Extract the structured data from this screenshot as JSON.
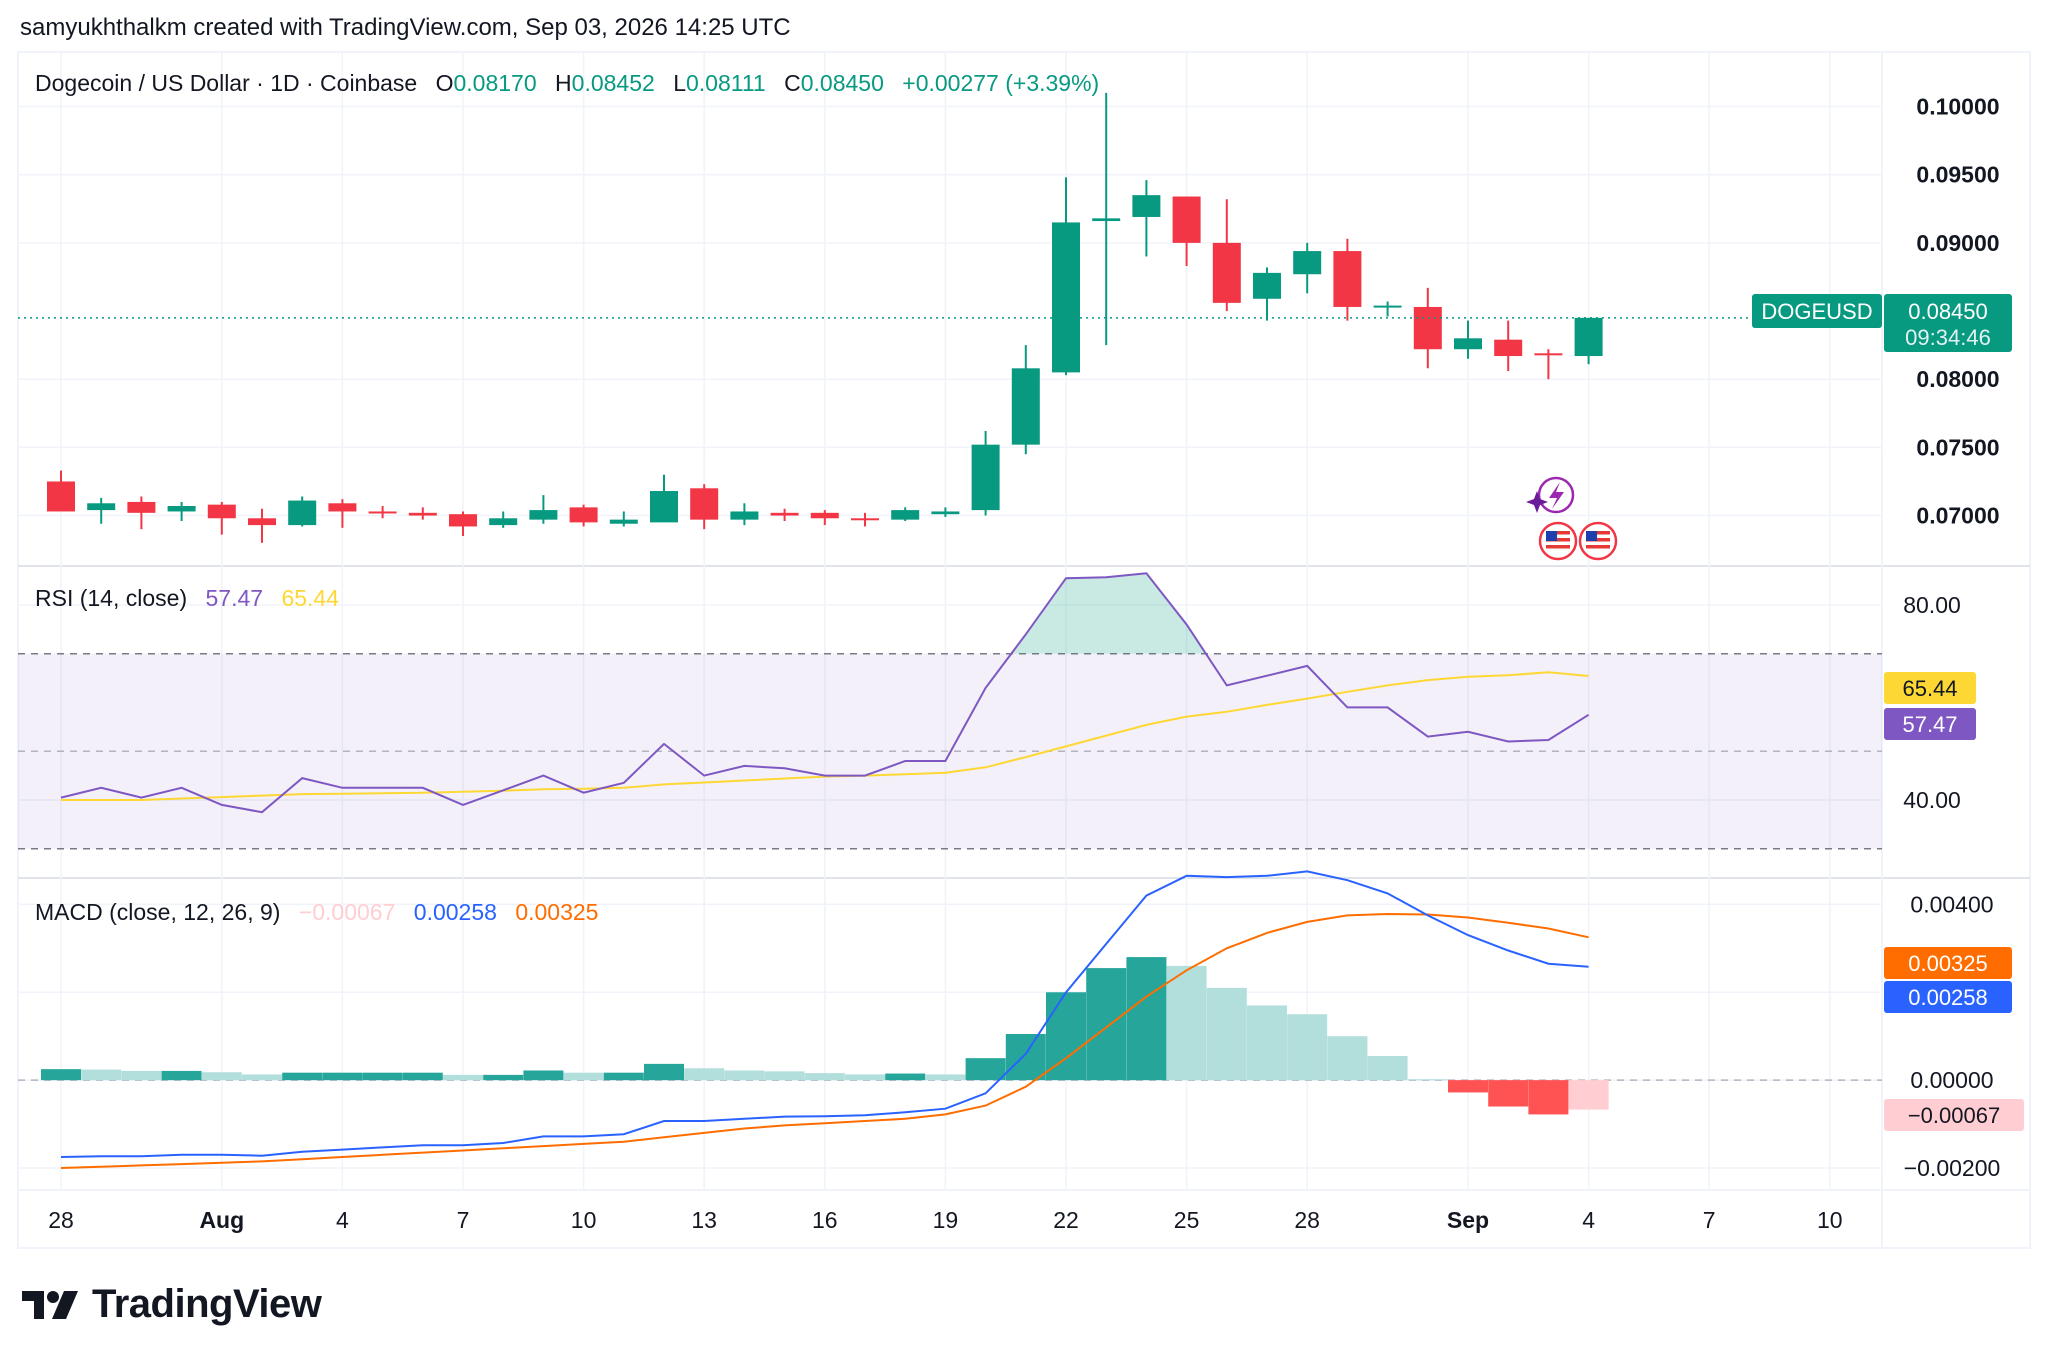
{
  "header": {
    "text": "samyukhthalkm created with TradingView.com, Sep 03, 2026 14:25 UTC"
  },
  "brand": {
    "name": "TradingView"
  },
  "legend": {
    "symbol": "Dogecoin / US Dollar · 1D · Coinbase",
    "o_label": "O",
    "o": "0.08170",
    "h_label": "H",
    "h": "0.08452",
    "l_label": "L",
    "l": "0.08111",
    "c_label": "C",
    "c": "0.08450",
    "change": "+0.00277 (+3.39%)"
  },
  "price_badge": {
    "symbol": "DOGEUSD",
    "price": "0.08450",
    "countdown": "09:34:46"
  },
  "rsi_legend": {
    "title": "RSI (14, close)",
    "rsi": "57.47",
    "ma": "65.44"
  },
  "macd_legend": {
    "title": "MACD (close, 12, 26, 9)",
    "hist": "−0.00067",
    "macd": "0.00258",
    "signal": "0.00325"
  },
  "colors": {
    "up": "#089981",
    "down": "#f23645",
    "rsi": "#7e57c2",
    "rsi_ma": "#fdd835",
    "macd": "#2962ff",
    "signal": "#ff6d00",
    "hist_up_strong": "#26a69a",
    "hist_up_weak": "#b2dfdb",
    "hist_down_strong": "#ff5252",
    "hist_down_weak": "#ffcdd2"
  },
  "chart_data": {
    "type": "candlestick",
    "price_axis": {
      "ticks": [
        "0.07000",
        "0.07500",
        "0.08000",
        "0.09000",
        "0.09500",
        "0.10000"
      ],
      "range": [
        0.0663,
        0.104
      ]
    },
    "x_axis": {
      "labels": [
        {
          "i": 0,
          "text": "28"
        },
        {
          "i": 4,
          "text": "Aug"
        },
        {
          "i": 7,
          "text": "4"
        },
        {
          "i": 10,
          "text": "7"
        },
        {
          "i": 13,
          "text": "10"
        },
        {
          "i": 16,
          "text": "13"
        },
        {
          "i": 19,
          "text": "16"
        },
        {
          "i": 22,
          "text": "19"
        },
        {
          "i": 25,
          "text": "22"
        },
        {
          "i": 28,
          "text": "25"
        },
        {
          "i": 31,
          "text": "28"
        },
        {
          "i": 35,
          "text": "Sep"
        },
        {
          "i": 38,
          "text": "4"
        },
        {
          "i": 41,
          "text": "7"
        },
        {
          "i": 44,
          "text": "10"
        }
      ]
    },
    "candles": [
      [
        0.0725,
        0.0733,
        0.0703,
        0.0703
      ],
      [
        0.0704,
        0.0713,
        0.0694,
        0.0709
      ],
      [
        0.071,
        0.0714,
        0.069,
        0.0702
      ],
      [
        0.0703,
        0.071,
        0.0696,
        0.0707
      ],
      [
        0.0708,
        0.071,
        0.0686,
        0.0698
      ],
      [
        0.0698,
        0.0705,
        0.068,
        0.0693
      ],
      [
        0.0693,
        0.0714,
        0.0692,
        0.0711
      ],
      [
        0.0709,
        0.0712,
        0.0691,
        0.0703
      ],
      [
        0.0703,
        0.0707,
        0.0698,
        0.0702
      ],
      [
        0.0702,
        0.0706,
        0.0697,
        0.07
      ],
      [
        0.0701,
        0.0703,
        0.0685,
        0.0692
      ],
      [
        0.0693,
        0.0703,
        0.0691,
        0.0698
      ],
      [
        0.0697,
        0.0715,
        0.0694,
        0.0704
      ],
      [
        0.0706,
        0.0708,
        0.0692,
        0.0695
      ],
      [
        0.0694,
        0.0703,
        0.0692,
        0.0697
      ],
      [
        0.0695,
        0.073,
        0.0695,
        0.0718
      ],
      [
        0.072,
        0.0723,
        0.069,
        0.0697
      ],
      [
        0.0697,
        0.0709,
        0.0693,
        0.0703
      ],
      [
        0.0702,
        0.0705,
        0.0696,
        0.07
      ],
      [
        0.0702,
        0.0704,
        0.0693,
        0.0698
      ],
      [
        0.0698,
        0.0702,
        0.0692,
        0.0697
      ],
      [
        0.0697,
        0.0706,
        0.0696,
        0.0704
      ],
      [
        0.0701,
        0.0706,
        0.0699,
        0.0703
      ],
      [
        0.0704,
        0.0762,
        0.07,
        0.0752
      ],
      [
        0.0752,
        0.0825,
        0.0745,
        0.0808
      ],
      [
        0.0805,
        0.0948,
        0.0803,
        0.0915
      ],
      [
        0.0916,
        0.101,
        0.0825,
        0.0918
      ],
      [
        0.0919,
        0.0946,
        0.089,
        0.0935
      ],
      [
        0.0934,
        0.0934,
        0.0883,
        0.09
      ],
      [
        0.09,
        0.0932,
        0.085,
        0.0856
      ],
      [
        0.0859,
        0.0882,
        0.0843,
        0.0878
      ],
      [
        0.0877,
        0.09,
        0.0863,
        0.0894
      ],
      [
        0.0894,
        0.0903,
        0.0843,
        0.0853
      ],
      [
        0.0854,
        0.0857,
        0.0846,
        0.0854
      ],
      [
        0.0853,
        0.0867,
        0.0808,
        0.0822
      ],
      [
        0.0822,
        0.0843,
        0.0815,
        0.083
      ],
      [
        0.0829,
        0.0843,
        0.0806,
        0.0817
      ],
      [
        0.0819,
        0.0822,
        0.08,
        0.0818
      ],
      [
        0.0817,
        0.0845,
        0.0811,
        0.0845
      ]
    ],
    "last_price": 0.0845,
    "rsi": {
      "axis": {
        "ticks": [
          "40.00",
          "80.00"
        ],
        "range": [
          24,
          88
        ],
        "bands": [
          30,
          50,
          70
        ]
      },
      "rsi_values": [
        40.5,
        42.5,
        40.5,
        42.5,
        39.0,
        37.5,
        44.5,
        42.5,
        42.5,
        42.5,
        39.0,
        42.0,
        45.0,
        41.5,
        43.5,
        51.5,
        45.0,
        47.0,
        46.5,
        45.0,
        45.0,
        48.0,
        48.0,
        63.0,
        74.0,
        85.5,
        85.7,
        86.5,
        76.0,
        63.5,
        65.5,
        67.5,
        59.0,
        59.0,
        53.0,
        54.0,
        52.0,
        52.3,
        57.47
      ],
      "ma_values": [
        40.0,
        40.0,
        40.0,
        40.3,
        40.6,
        40.9,
        41.2,
        41.3,
        41.4,
        41.5,
        41.7,
        41.9,
        42.2,
        42.3,
        42.5,
        43.2,
        43.6,
        44.0,
        44.4,
        44.8,
        45.0,
        45.3,
        45.6,
        46.7,
        48.8,
        51.0,
        53.2,
        55.4,
        57.1,
        58.1,
        59.5,
        60.8,
        62.2,
        63.5,
        64.6,
        65.3,
        65.6,
        66.2,
        65.44
      ]
    },
    "macd": {
      "axis": {
        "ticks": [
          "−0.00200",
          "0.00000",
          "0.00200",
          "0.00400"
        ],
        "range": [
          -0.0025,
          0.0046
        ]
      },
      "macd_values": [
        -0.00175,
        -0.00173,
        -0.00173,
        -0.0017,
        -0.0017,
        -0.00172,
        -0.00163,
        -0.00158,
        -0.00153,
        -0.00148,
        -0.00148,
        -0.00143,
        -0.00128,
        -0.00128,
        -0.00123,
        -0.00093,
        -0.00093,
        -0.00088,
        -0.00083,
        -0.00082,
        -0.0008,
        -0.00073,
        -0.00065,
        -0.0003,
        0.0006,
        0.002,
        0.0031,
        0.0042,
        0.00465,
        0.00462,
        0.00465,
        0.00475,
        0.00455,
        0.00425,
        0.00375,
        0.0033,
        0.00295,
        0.00265,
        0.00258
      ],
      "signal_values": [
        -0.002,
        -0.00197,
        -0.00194,
        -0.00191,
        -0.00188,
        -0.00185,
        -0.0018,
        -0.00175,
        -0.0017,
        -0.00165,
        -0.0016,
        -0.00155,
        -0.0015,
        -0.00145,
        -0.0014,
        -0.0013,
        -0.0012,
        -0.0011,
        -0.00103,
        -0.00098,
        -0.00093,
        -0.00088,
        -0.00078,
        -0.00058,
        -0.00015,
        0.0005,
        0.0012,
        0.0019,
        0.0025,
        0.003,
        0.00335,
        0.0036,
        0.00375,
        0.00378,
        0.00377,
        0.0037,
        0.00358,
        0.00345,
        0.00325
      ],
      "hist_values": [
        0.00025,
        0.00024,
        0.00021,
        0.00021,
        0.00018,
        0.00013,
        0.00017,
        0.00017,
        0.00017,
        0.00017,
        0.00012,
        0.00012,
        0.00022,
        0.00017,
        0.00017,
        0.00037,
        0.00027,
        0.00022,
        0.0002,
        0.00016,
        0.00013,
        0.00015,
        0.00013,
        0.0005,
        0.00105,
        0.002,
        0.00255,
        0.0028,
        0.0026,
        0.0021,
        0.0017,
        0.0015,
        0.001,
        0.00055,
        2e-05,
        -0.00028,
        -0.0006,
        -0.00078,
        -0.00067
      ]
    }
  }
}
